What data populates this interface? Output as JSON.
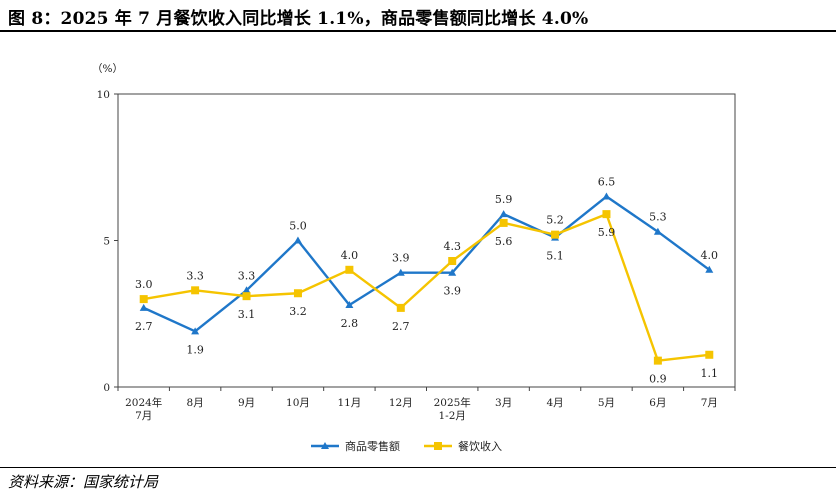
{
  "title": "图 8：2025 年 7 月餐饮收入同比增长 1.1%，商品零售额同比增长 4.0%",
  "source": "资料来源：国家统计局",
  "chart_data": {
    "type": "line",
    "yunit": "（%）",
    "ylim": [
      0,
      10
    ],
    "yticks": [
      0,
      5,
      10
    ],
    "grid": false,
    "legend_position": "bottom-center",
    "categories": [
      [
        "2024年",
        "7月"
      ],
      [
        "8月"
      ],
      [
        "9月"
      ],
      [
        "10月"
      ],
      [
        "11月"
      ],
      [
        "12月"
      ],
      [
        "2025年",
        "1-2月"
      ],
      [
        "3月"
      ],
      [
        "4月"
      ],
      [
        "5月"
      ],
      [
        "6月"
      ],
      [
        "7月"
      ]
    ],
    "series": [
      {
        "name": "商品零售额",
        "color": "#1f77c9",
        "marker": "triangle",
        "values": [
          2.7,
          1.9,
          3.3,
          5.0,
          2.8,
          3.9,
          3.9,
          5.9,
          5.1,
          6.5,
          5.3,
          4.0
        ],
        "label_pos": [
          "below",
          "below",
          "above",
          "above",
          "below",
          "above",
          "below",
          "above",
          "below",
          "above",
          "above",
          "above"
        ]
      },
      {
        "name": "餐饮收入",
        "color": "#f5c400",
        "marker": "square",
        "values": [
          3.0,
          3.3,
          3.1,
          3.2,
          4.0,
          2.7,
          4.3,
          5.6,
          5.2,
          5.9,
          0.9,
          1.1
        ],
        "label_pos": [
          "above",
          "above",
          "below",
          "below",
          "above",
          "below",
          "above",
          "below",
          "above",
          "below",
          "below",
          "below"
        ]
      }
    ]
  }
}
